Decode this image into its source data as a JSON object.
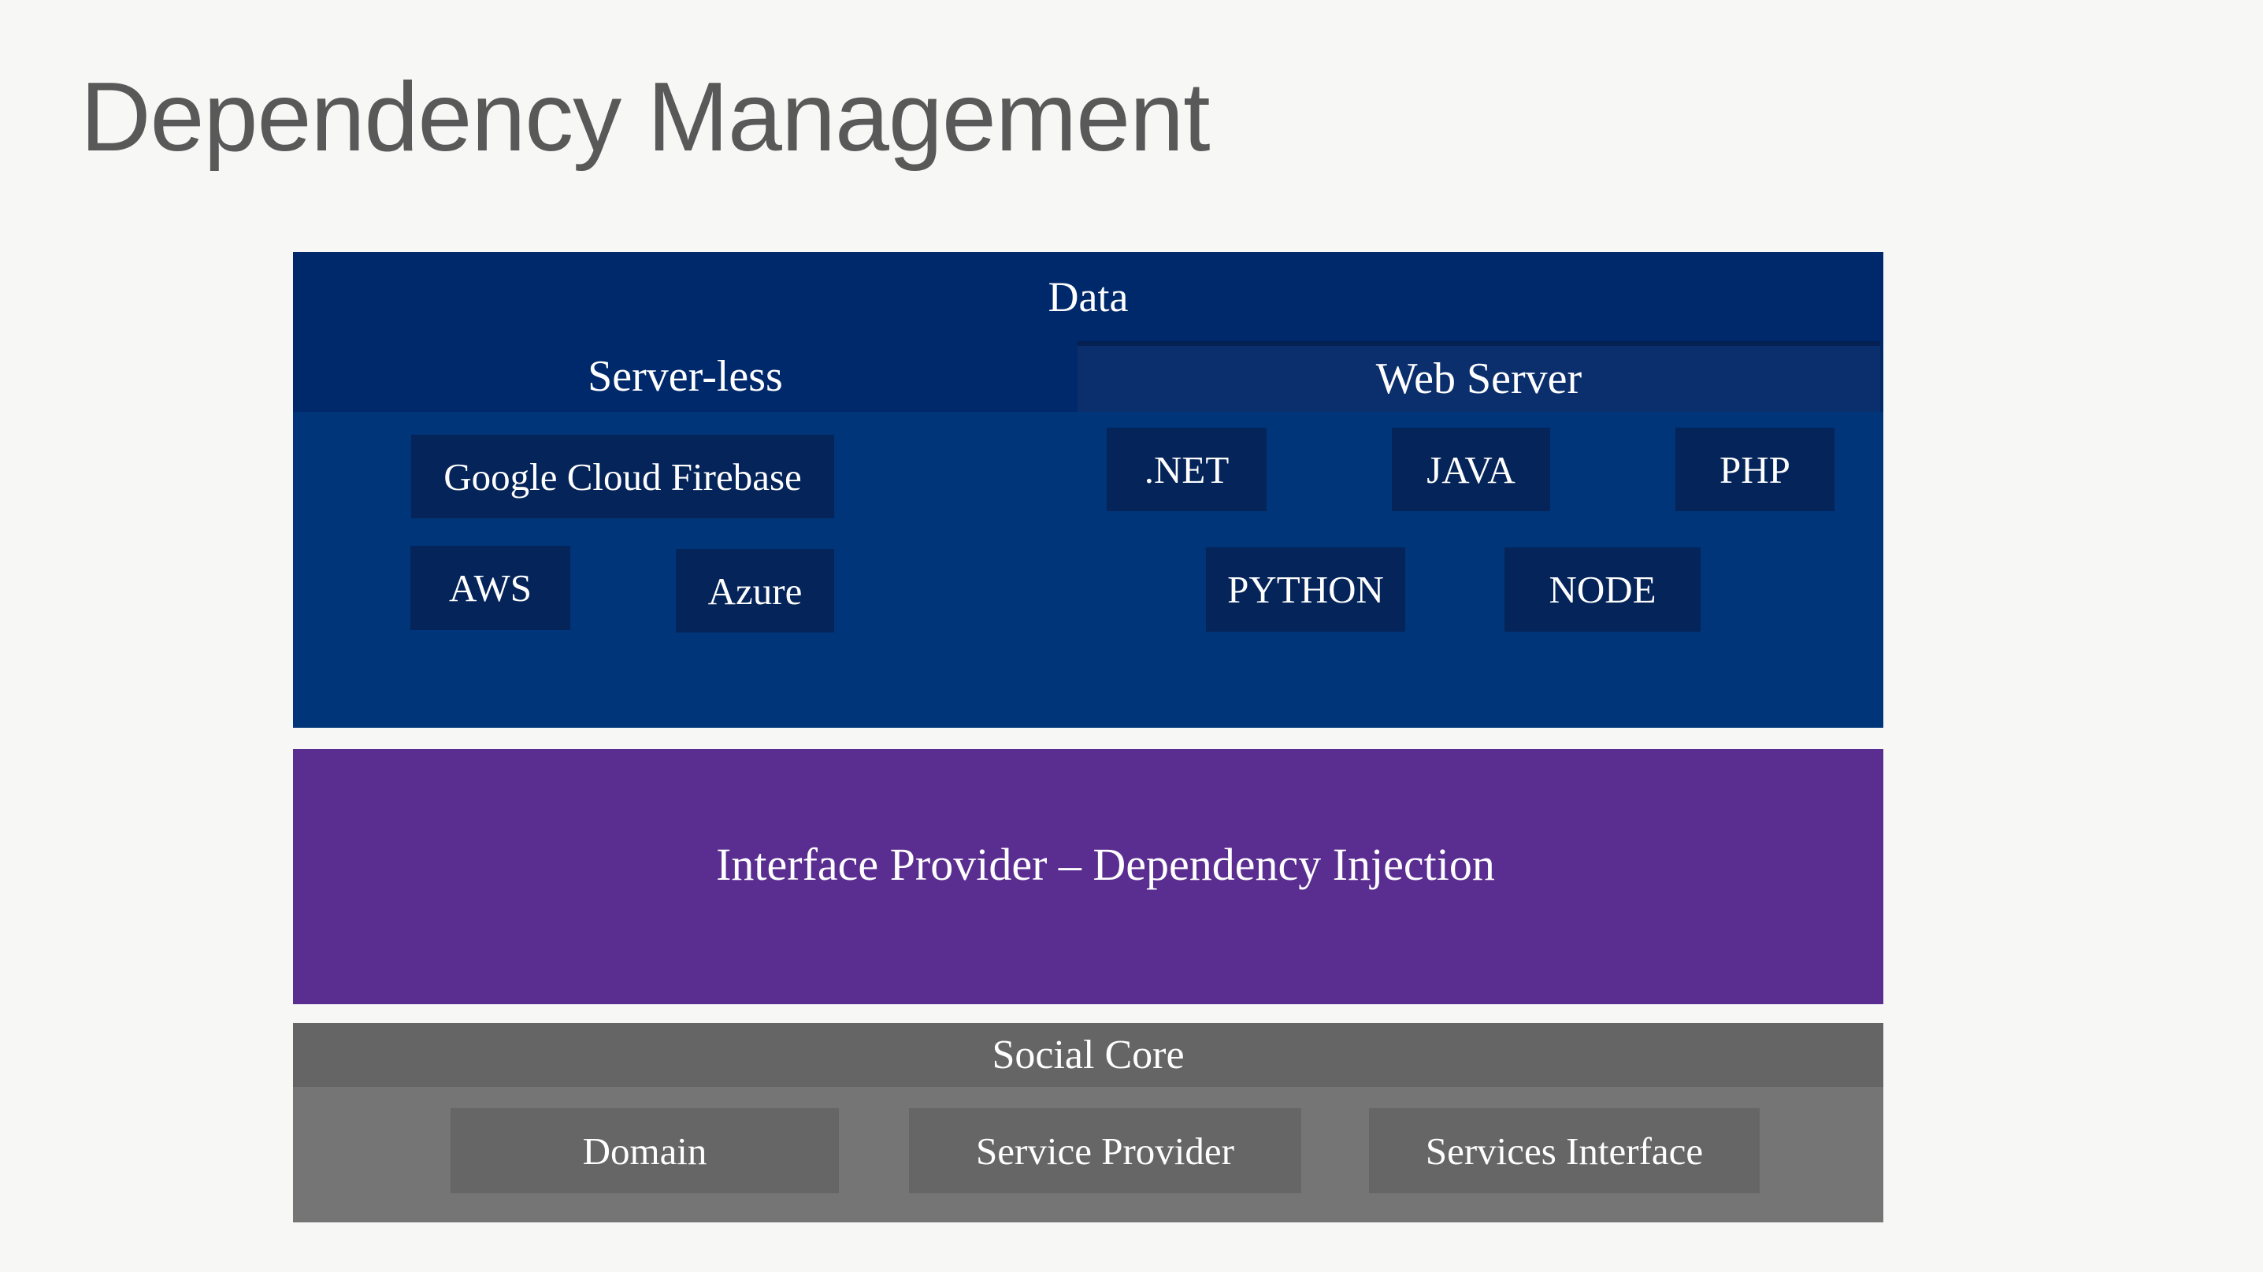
{
  "slide": {
    "title": "Dependency Management"
  },
  "colors": {
    "page_background": "#f7f7f6",
    "title_text": "#595959",
    "data_header_band": "#00296b",
    "data_body": "#003579",
    "data_chip": "#052459",
    "web_server_box": "#0b2e6c",
    "interface_block": "#5a2d90",
    "social_header_band": "#666565",
    "social_body": "#767575",
    "social_chip": "#676666",
    "diagram_text": "#ffffff"
  },
  "diagram": {
    "data_layer": {
      "title": "Data",
      "serverless": {
        "title": "Server-less",
        "items": [
          "Google Cloud Firebase",
          "AWS",
          "Azure"
        ]
      },
      "web_server": {
        "title": "Web Server",
        "items": [
          ".NET",
          "JAVA",
          "PHP",
          "PYTHON",
          "NODE"
        ]
      }
    },
    "interface_layer": {
      "title": "Interface Provider – Dependency Injection"
    },
    "social_layer": {
      "title": "Social Core",
      "items": [
        "Domain",
        "Service Provider",
        "Services Interface"
      ]
    }
  }
}
